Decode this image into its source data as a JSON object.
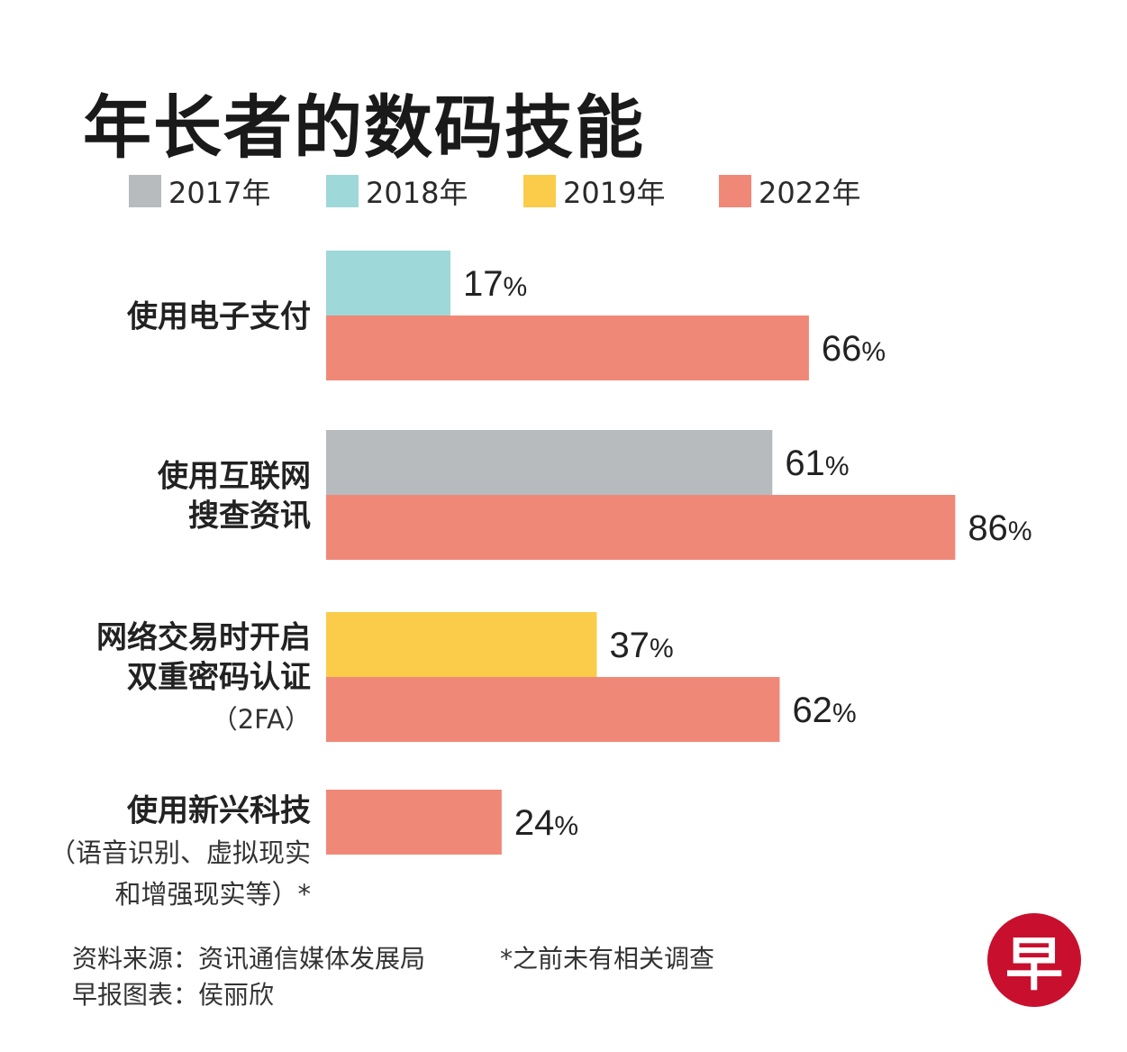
{
  "colors": {
    "2017": "#b8bbbe",
    "2018": "#9ed8d8",
    "2019": "#fbcc4a",
    "2022": "#f08878",
    "logo": "#c8102e"
  },
  "chart_data": {
    "type": "bar",
    "orientation": "horizontal",
    "title": "年长者的数码技能",
    "legend": [
      "2017年",
      "2018年",
      "2019年",
      "2022年"
    ],
    "legend_position": "top",
    "value_unit": "%",
    "categories": [
      {
        "label_lines": [
          "使用电子支付"
        ],
        "note_lines": [],
        "bars": [
          {
            "year": "2018年",
            "value": 17
          },
          {
            "year": "2022年",
            "value": 66
          }
        ]
      },
      {
        "label_lines": [
          "使用互联网",
          "搜查资讯"
        ],
        "note_lines": [],
        "bars": [
          {
            "year": "2017年",
            "value": 61
          },
          {
            "year": "2022年",
            "value": 86
          }
        ]
      },
      {
        "label_lines": [
          "网络交易时开启",
          "双重密码认证"
        ],
        "note_lines": [
          "（2FA）"
        ],
        "bars": [
          {
            "year": "2019年",
            "value": 37
          },
          {
            "year": "2022年",
            "value": 62
          }
        ]
      },
      {
        "label_lines": [
          "使用新兴科技"
        ],
        "note_lines": [
          "（语音识别、虚拟现实",
          "和增强现实等）*"
        ],
        "bars": [
          {
            "year": "2022年",
            "value": 24
          }
        ]
      }
    ],
    "xlim": [
      0,
      100
    ],
    "grid": false
  },
  "footer": {
    "source": "资料来源：资讯通信媒体发展局",
    "credit": "早报图表：侯丽欣",
    "note": "*之前未有相关调查"
  },
  "logo": {
    "text": "早",
    "icon": "zaobao-logo"
  }
}
